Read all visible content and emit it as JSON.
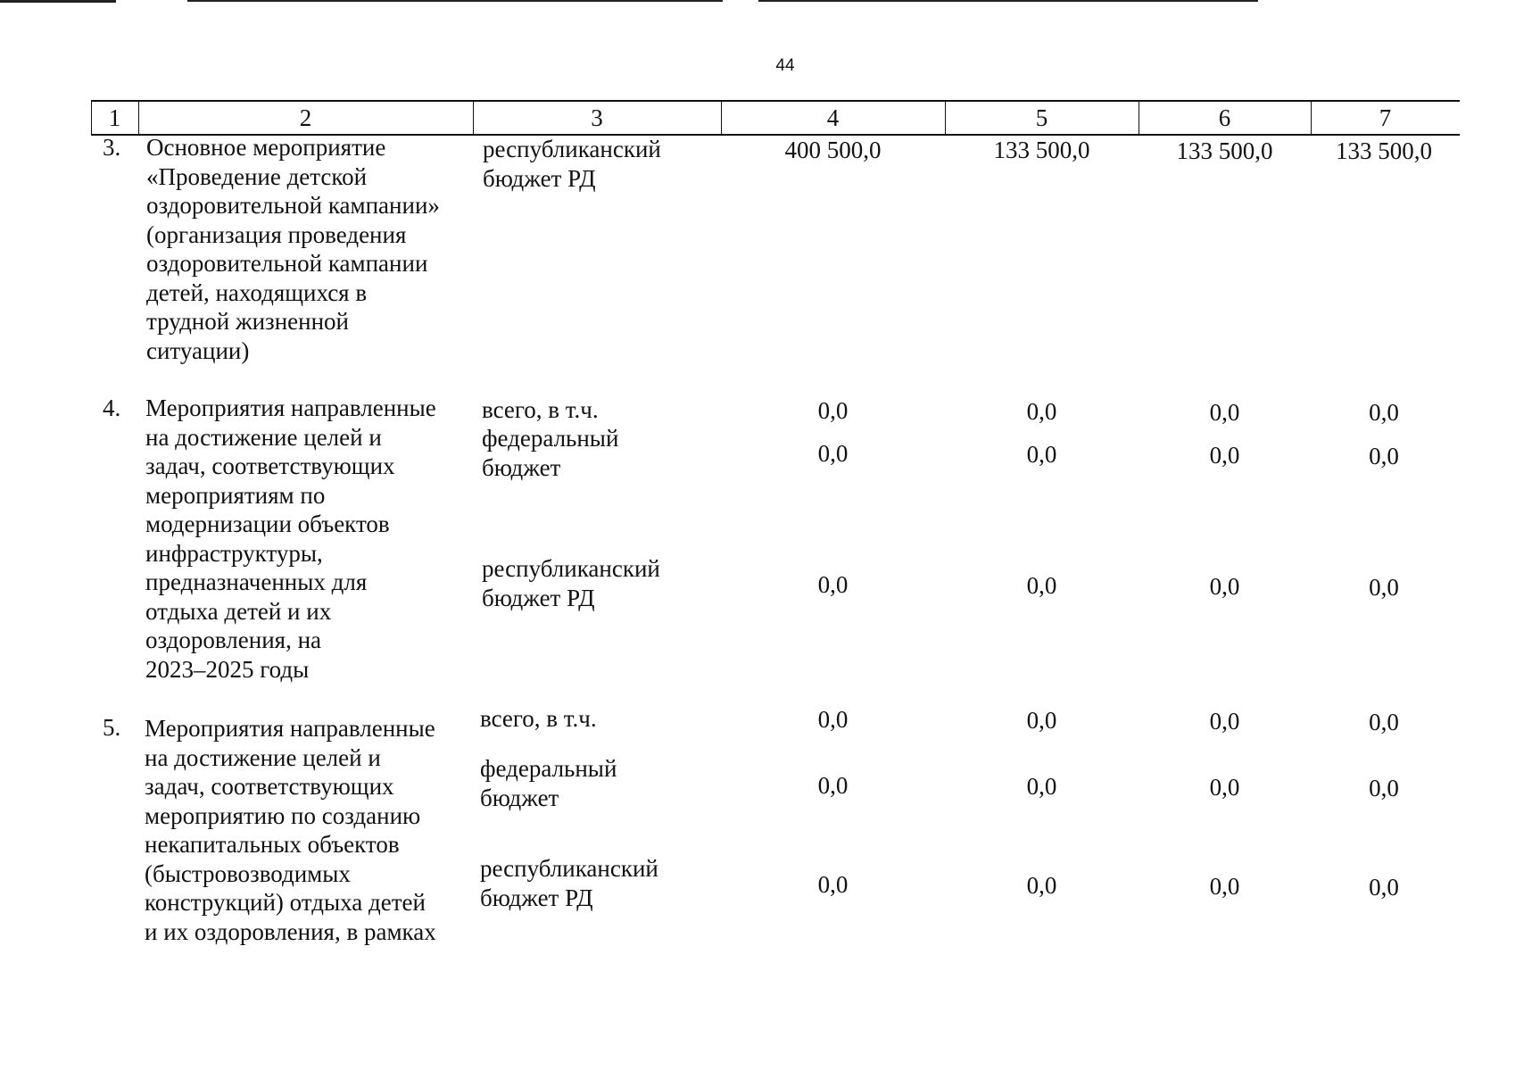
{
  "page_number": "44",
  "header": {
    "columns": [
      "1",
      "2",
      "3",
      "4",
      "5",
      "6",
      "7"
    ]
  },
  "rows": [
    {
      "number": "3.",
      "name_lines": [
        "Основное мероприятие",
        "«Проведение детской",
        "оздоровительной кампании»",
        "(организация проведения",
        "оздоровительной кампании",
        "детей, находящихся в",
        "трудной жизненной",
        "ситуации)"
      ],
      "sources": [
        {
          "label_lines": [
            "республиканский",
            "бюджет РД"
          ],
          "values": [
            "400 500,0",
            "133 500,0",
            "133 500,0",
            "133 500,0"
          ]
        }
      ]
    },
    {
      "number": "4.",
      "name_lines": [
        "Мероприятия направленные",
        "на достижение целей и",
        "задач, соответствующих",
        "мероприятиям по",
        "модернизации объектов",
        "инфраструктуры,",
        "предназначенных для",
        "отдыха детей  и  их",
        "оздоровления, на",
        "2023–2025 годы"
      ],
      "sources": [
        {
          "label_lines": [
            "всего, в т.ч."
          ],
          "values": [
            "0,0",
            "0,0",
            "0,0",
            "0,0"
          ]
        },
        {
          "label_lines": [
            "федеральный",
            "бюджет"
          ],
          "values": [
            "0,0",
            "0,0",
            "0,0",
            "0,0"
          ]
        },
        {
          "label_lines": [
            "республиканский",
            "бюджет РД"
          ],
          "values": [
            "0,0",
            "0,0",
            "0,0",
            "0,0"
          ]
        }
      ]
    },
    {
      "number": "5.",
      "name_lines": [
        "Мероприятия направленные",
        "на достижение целей и",
        "задач, соответствующих",
        "мероприятию по созданию",
        "некапитальных объектов",
        "(быстровозводимых",
        "конструкций) отдыха детей",
        "и их оздоровления, в рамках"
      ],
      "sources": [
        {
          "label_lines": [
            "всего, в т.ч."
          ],
          "values": [
            "0,0",
            "0,0",
            "0,0",
            "0,0"
          ]
        },
        {
          "label_lines": [
            "федеральный",
            "бюджет"
          ],
          "values": [
            "0,0",
            "0,0",
            "0,0",
            "0,0"
          ]
        },
        {
          "label_lines": [
            "республиканский",
            "бюджет РД"
          ],
          "values": [
            "0,0",
            "0,0",
            "0,0",
            "0,0"
          ]
        }
      ]
    }
  ]
}
